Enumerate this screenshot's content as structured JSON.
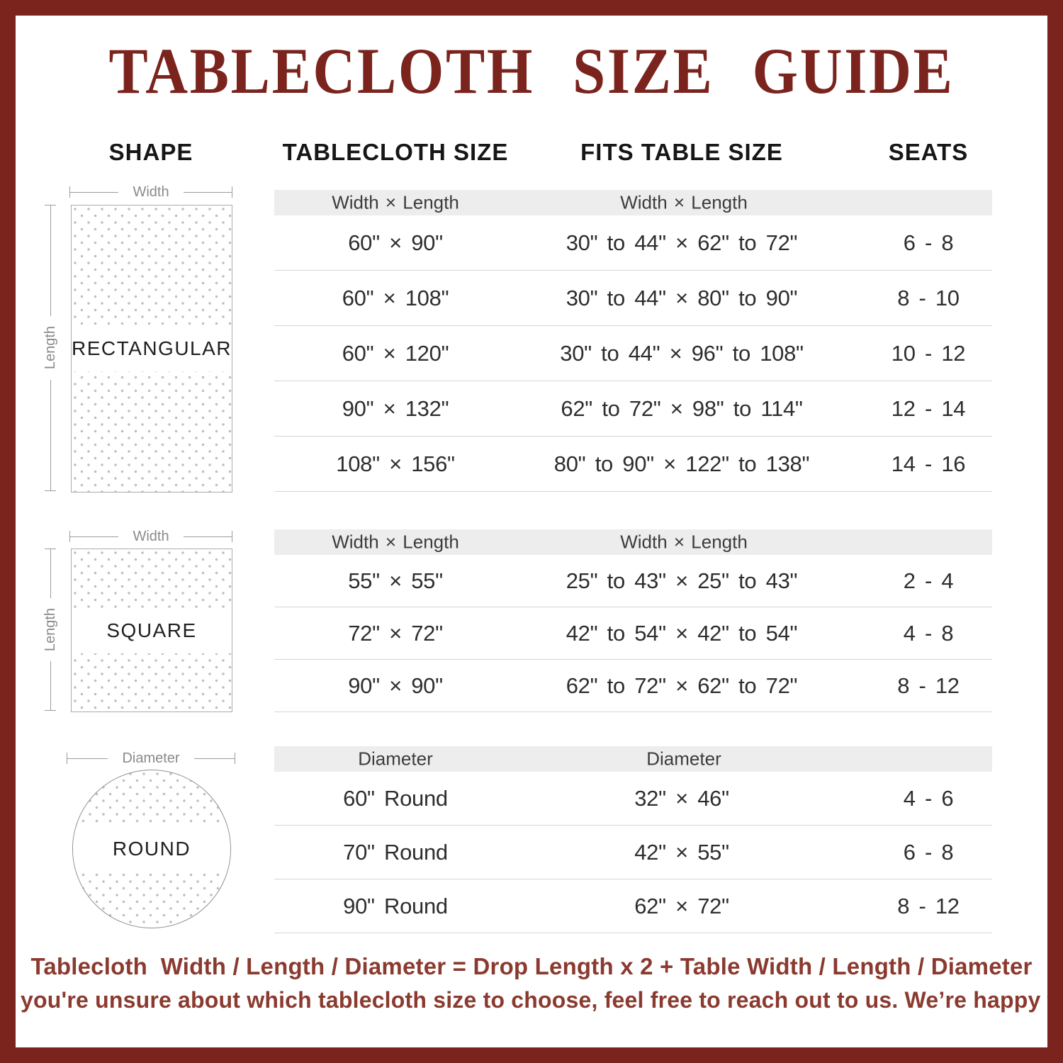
{
  "title": "TABLECLOTH SIZE GUIDE",
  "colors": {
    "accent": "#7b241e",
    "footer_text": "#8b3a2f",
    "header_bar_bg": "#ededed",
    "divider": "#d6d6d6"
  },
  "columns": {
    "shape": "SHAPE",
    "cloth": "TABLECLOTH SIZE",
    "fits": "FITS TABLE SIZE",
    "seats": "SEATS"
  },
  "shapes": {
    "rectangular": {
      "label": "RECTANGULAR",
      "width_label": "Width",
      "length_label": "Length"
    },
    "square": {
      "label": "SQUARE",
      "width_label": "Width",
      "length_label": "Length"
    },
    "round": {
      "label": "ROUND",
      "diameter_label": "Diameter"
    }
  },
  "sections": {
    "rectangular": {
      "size_header": "Width × Length",
      "fits_header": "Width × Length",
      "rows": [
        {
          "cloth": "60\" ×  90\"",
          "fits": "30\" to 44\"  ×  62\" to 72\"",
          "seats": "6 - 8"
        },
        {
          "cloth": "60\" × 108\"",
          "fits": "30\" to 44\"  ×  80\" to 90\"",
          "seats": "8 - 10"
        },
        {
          "cloth": "60\" × 120\"",
          "fits": "30\" to 44\"  ×  96\" to 108\"",
          "seats": "10 - 12"
        },
        {
          "cloth": "90\" × 132\"",
          "fits": "62\" to 72\"  ×  98\" to 114\"",
          "seats": "12 - 14"
        },
        {
          "cloth": "108\" × 156\"",
          "fits": "80\" to 90\"  ×  122\" to 138\"",
          "seats": "14 - 16"
        }
      ]
    },
    "square": {
      "size_header": "Width × Length",
      "fits_header": "Width × Length",
      "rows": [
        {
          "cloth": "55\" ×  55\"",
          "fits": "25\" to 43\"  ×  25\" to 43\"",
          "seats": "2 - 4"
        },
        {
          "cloth": "72\" ×  72\"",
          "fits": "42\" to 54\"  ×  42\" to 54\"",
          "seats": "4 - 8"
        },
        {
          "cloth": "90\" ×  90\"",
          "fits": "62\" to 72\"  ×  62\" to 72\"",
          "seats": "8 - 12"
        }
      ]
    },
    "round": {
      "size_header": "Diameter",
      "fits_header": "Diameter",
      "rows": [
        {
          "cloth": "60\" Round",
          "fits": "32\"  ×  46\"",
          "seats": "4 - 6"
        },
        {
          "cloth": "70\" Round",
          "fits": "42\"  ×  55\"",
          "seats": "6 - 8"
        },
        {
          "cloth": "90\" Round",
          "fits": "62\"  ×  72\"",
          "seats": "8 - 12"
        }
      ]
    }
  },
  "footer": {
    "line1": "Tablecloth  Width / Length / Diameter = Drop Length x 2 + Table Width / Length / Diameter",
    "line2": "If you're unsure about which tablecloth size to choose, feel free to reach out to us. We’re happy to help!"
  }
}
